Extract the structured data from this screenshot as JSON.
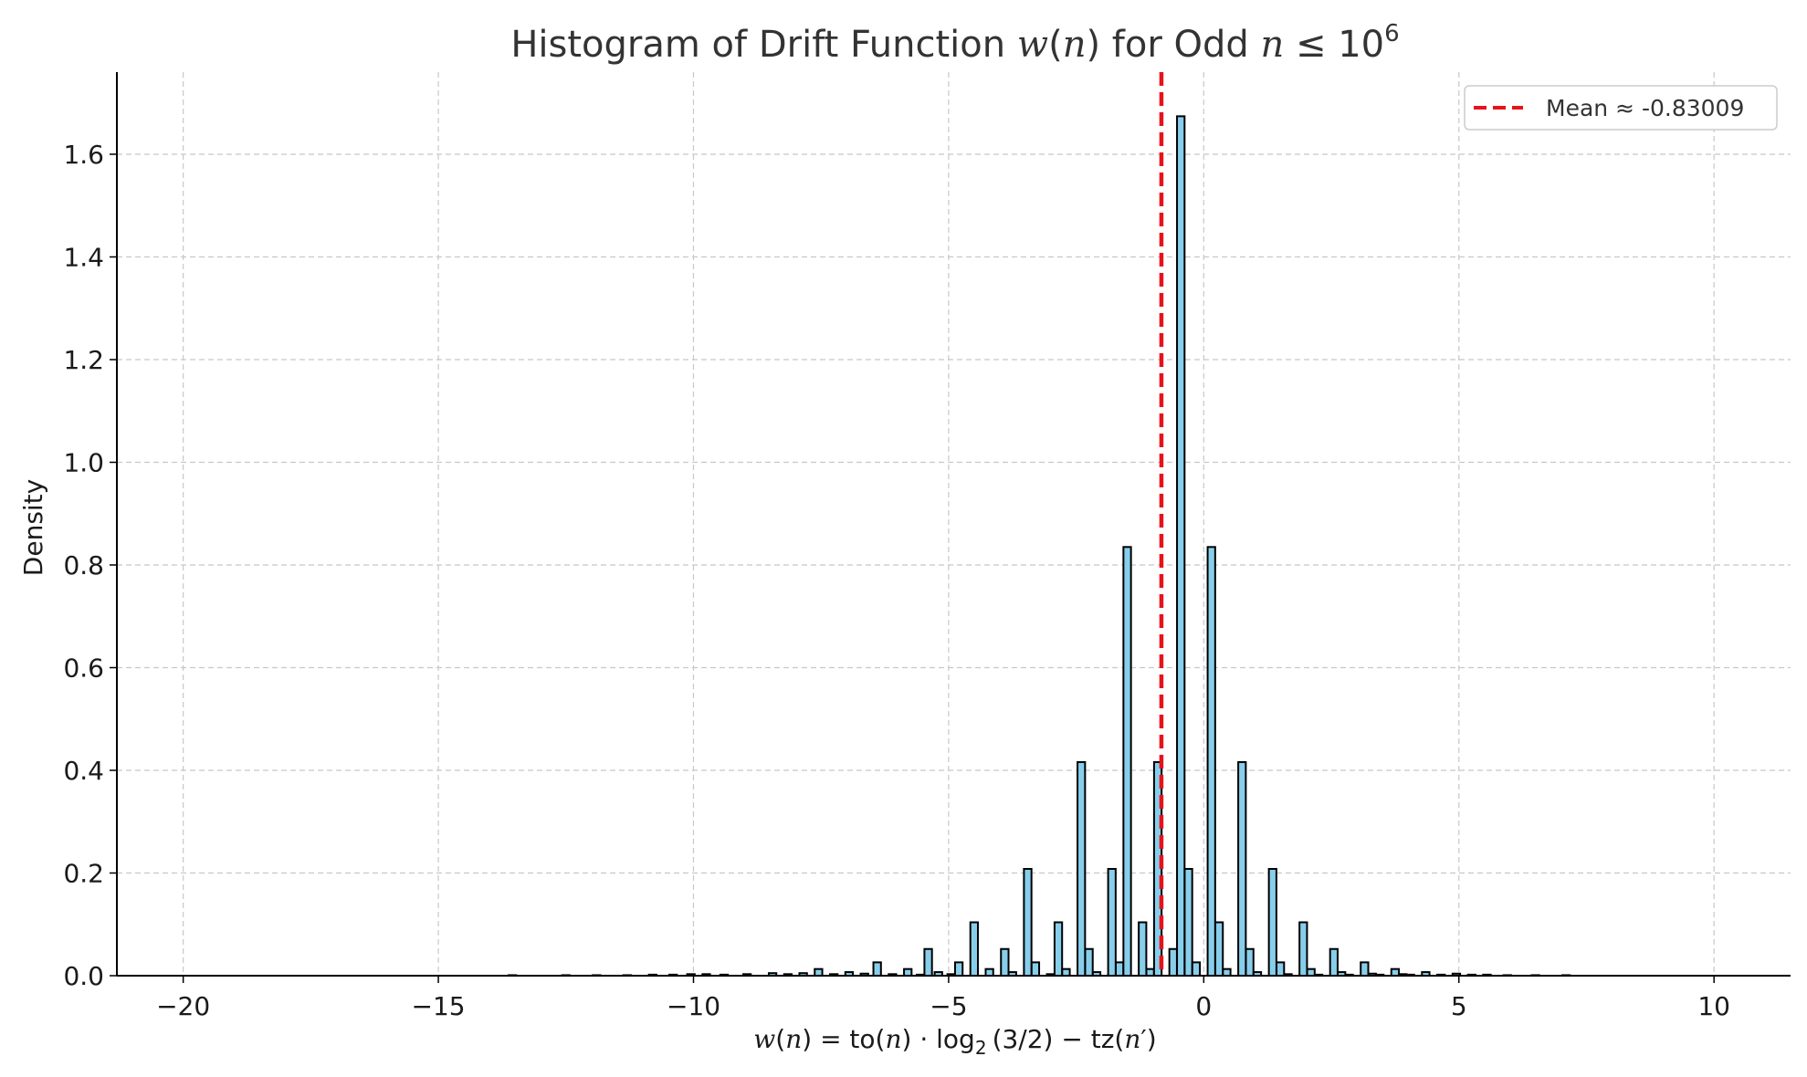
{
  "chart_data": {
    "type": "bar",
    "title": {
      "prefix": "Histogram of Drift Function ",
      "w": "w",
      "paren_open": "(",
      "n": "n",
      "paren_close": ")",
      "mid": " for Odd ",
      "n2": "n",
      "leq": " ≤ 10",
      "exp": "6"
    },
    "xlabel": {
      "w": "w",
      "p1": "(",
      "n1": "n",
      "p2": ") = to(",
      "n2": "n",
      "p3": ") · log",
      "sub": "2",
      "p4": "(3/2) − tz(",
      "n3": "n",
      "prime": "′",
      "p5": ")"
    },
    "ylabel": "Density",
    "xlim": [
      -21.3,
      11.5
    ],
    "ylim": [
      0,
      1.76
    ],
    "x_ticks": [
      -20,
      -15,
      -10,
      -5,
      0,
      5,
      10
    ],
    "x_tick_labels": [
      "−20",
      "−15",
      "−10",
      "−5",
      "0",
      "5",
      "10"
    ],
    "y_ticks": [
      0.0,
      0.2,
      0.4,
      0.6,
      0.8,
      1.0,
      1.2,
      1.4,
      1.6
    ],
    "y_tick_labels": [
      "0.0",
      "0.2",
      "0.4",
      "0.6",
      "0.8",
      "1.0",
      "1.2",
      "1.4",
      "1.6"
    ],
    "grid": true,
    "bin_width": 0.148,
    "bar_color": "#87ceeb",
    "edge_color": "#000000",
    "bins": [
      {
        "x": -13.55,
        "y": 0.001
      },
      {
        "x": -12.5,
        "y": 0.001
      },
      {
        "x": -11.9,
        "y": 0.001
      },
      {
        "x": -11.3,
        "y": 0.001
      },
      {
        "x": -10.8,
        "y": 0.002
      },
      {
        "x": -10.4,
        "y": 0.002
      },
      {
        "x": -10.05,
        "y": 0.003
      },
      {
        "x": -9.75,
        "y": 0.003
      },
      {
        "x": -9.4,
        "y": 0.002
      },
      {
        "x": -8.95,
        "y": 0.003
      },
      {
        "x": -8.45,
        "y": 0.005
      },
      {
        "x": -8.15,
        "y": 0.003
      },
      {
        "x": -7.85,
        "y": 0.005
      },
      {
        "x": -7.55,
        "y": 0.013
      },
      {
        "x": -7.25,
        "y": 0.003
      },
      {
        "x": -6.95,
        "y": 0.007
      },
      {
        "x": -6.65,
        "y": 0.004
      },
      {
        "x": -6.4,
        "y": 0.026
      },
      {
        "x": -6.1,
        "y": 0.003
      },
      {
        "x": -5.8,
        "y": 0.013
      },
      {
        "x": -5.55,
        "y": 0.002
      },
      {
        "x": -5.4,
        "y": 0.052
      },
      {
        "x": -5.2,
        "y": 0.007
      },
      {
        "x": -4.95,
        "y": 0.003
      },
      {
        "x": -4.8,
        "y": 0.026
      },
      {
        "x": -4.5,
        "y": 0.104
      },
      {
        "x": -4.2,
        "y": 0.013
      },
      {
        "x": -3.9,
        "y": 0.052
      },
      {
        "x": -3.75,
        "y": 0.007
      },
      {
        "x": -3.45,
        "y": 0.208
      },
      {
        "x": -3.3,
        "y": 0.026
      },
      {
        "x": -3.0,
        "y": 0.003
      },
      {
        "x": -2.85,
        "y": 0.104
      },
      {
        "x": -2.7,
        "y": 0.013
      },
      {
        "x": -2.4,
        "y": 0.416
      },
      {
        "x": -2.25,
        "y": 0.052
      },
      {
        "x": -2.1,
        "y": 0.007
      },
      {
        "x": -1.8,
        "y": 0.208
      },
      {
        "x": -1.65,
        "y": 0.026
      },
      {
        "x": -1.5,
        "y": 0.835
      },
      {
        "x": -1.2,
        "y": 0.104
      },
      {
        "x": -1.05,
        "y": 0.013
      },
      {
        "x": -0.9,
        "y": 0.416
      },
      {
        "x": -0.6,
        "y": 0.052
      },
      {
        "x": -0.45,
        "y": 1.674
      },
      {
        "x": -0.3,
        "y": 0.208
      },
      {
        "x": -0.15,
        "y": 0.026
      },
      {
        "x": 0.15,
        "y": 0.835
      },
      {
        "x": 0.3,
        "y": 0.104
      },
      {
        "x": 0.45,
        "y": 0.013
      },
      {
        "x": 0.75,
        "y": 0.416
      },
      {
        "x": 0.9,
        "y": 0.052
      },
      {
        "x": 1.05,
        "y": 0.007
      },
      {
        "x": 1.35,
        "y": 0.208
      },
      {
        "x": 1.5,
        "y": 0.026
      },
      {
        "x": 1.65,
        "y": 0.003
      },
      {
        "x": 1.95,
        "y": 0.104
      },
      {
        "x": 2.1,
        "y": 0.013
      },
      {
        "x": 2.25,
        "y": 0.002
      },
      {
        "x": 2.55,
        "y": 0.052
      },
      {
        "x": 2.7,
        "y": 0.007
      },
      {
        "x": 2.85,
        "y": 0.002
      },
      {
        "x": 3.15,
        "y": 0.026
      },
      {
        "x": 3.3,
        "y": 0.004
      },
      {
        "x": 3.45,
        "y": 0.002
      },
      {
        "x": 3.75,
        "y": 0.013
      },
      {
        "x": 3.9,
        "y": 0.003
      },
      {
        "x": 4.05,
        "y": 0.002
      },
      {
        "x": 4.35,
        "y": 0.007
      },
      {
        "x": 4.65,
        "y": 0.002
      },
      {
        "x": 4.95,
        "y": 0.004
      },
      {
        "x": 5.25,
        "y": 0.002
      },
      {
        "x": 5.55,
        "y": 0.002
      },
      {
        "x": 5.95,
        "y": 0.001
      },
      {
        "x": 6.5,
        "y": 0.001
      },
      {
        "x": 7.1,
        "y": 0.001
      }
    ],
    "mean": {
      "value": -0.83009,
      "label": "Mean ≈ -0.83009",
      "color": "#e8121a",
      "style": "dashed"
    },
    "legend": {
      "placement": "top-right",
      "entries": [
        "Mean ≈ -0.83009"
      ]
    }
  }
}
